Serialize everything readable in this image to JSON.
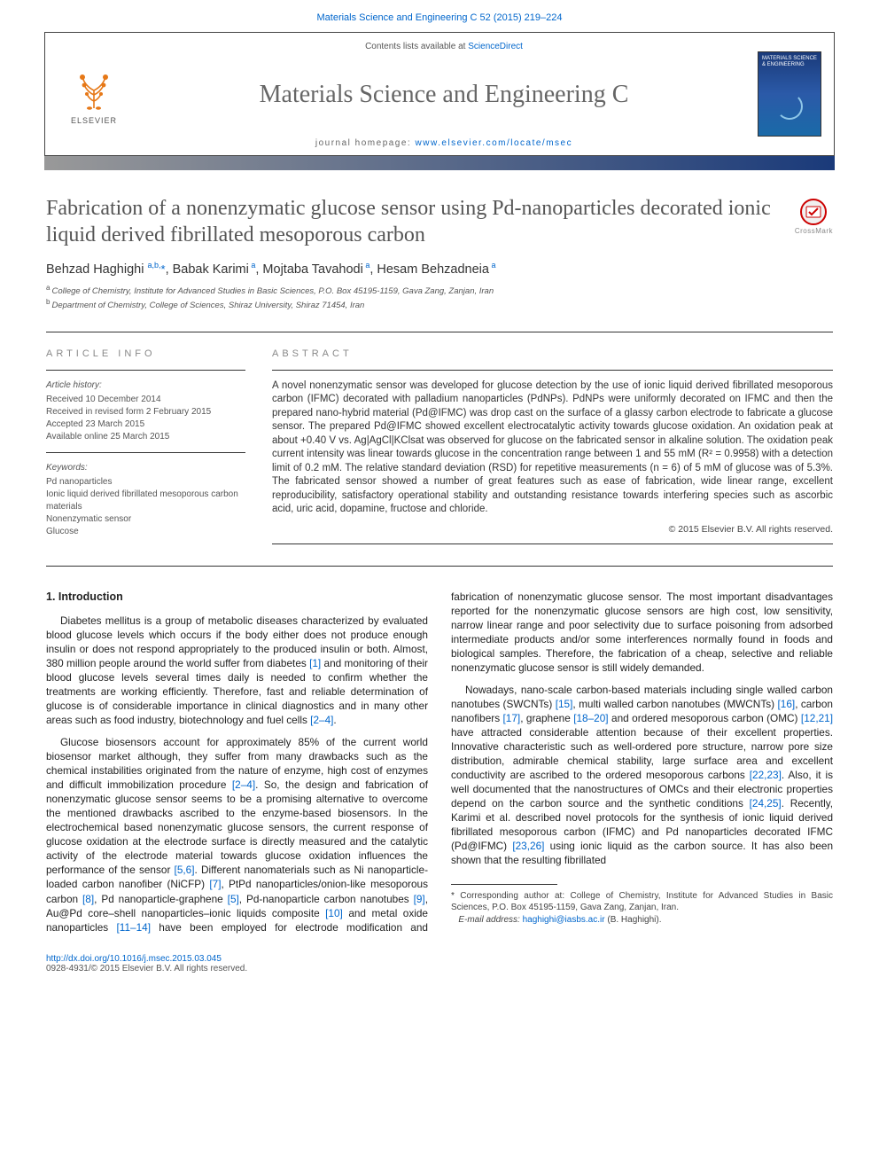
{
  "top_link": {
    "journal_ref": "Materials Science and Engineering C 52 (2015) 219–224"
  },
  "header": {
    "elsevier_label": "ELSEVIER",
    "contents_prefix": "Contents lists available at ",
    "contents_link": "ScienceDirect",
    "journal_name": "Materials Science and Engineering C",
    "homepage_prefix": "journal homepage: ",
    "homepage_url": "www.elsevier.com/locate/msec",
    "cover_text": "MATERIALS SCIENCE & ENGINEERING"
  },
  "article": {
    "title": "Fabrication of a nonenzymatic glucose sensor using Pd-nanoparticles decorated ionic liquid derived fibrillated mesoporous carbon",
    "crossmark_label": "CrossMark",
    "authors_html": "Behzad Haghighi <sup>a,b,</sup><span class='star'>*</span>, Babak Karimi<sup> a</sup>, Mojtaba Tavahodi<sup> a</sup>, Hesam Behzadneia<sup> a</sup>",
    "affiliations": {
      "a": "College of Chemistry, Institute for Advanced Studies in Basic Sciences, P.O. Box 45195-1159, Gava Zang, Zanjan, Iran",
      "b": "Department of Chemistry, College of Sciences, Shiraz University, Shiraz 71454, Iran"
    }
  },
  "info": {
    "heading": "article info",
    "history_label": "Article history:",
    "received": "Received 10 December 2014",
    "revised": "Received in revised form 2 February 2015",
    "accepted": "Accepted 23 March 2015",
    "online": "Available online 25 March 2015",
    "keywords_label": "Keywords:",
    "keywords": [
      "Pd nanoparticles",
      "Ionic liquid derived fibrillated mesoporous carbon materials",
      "Nonenzymatic sensor",
      "Glucose"
    ]
  },
  "abstract": {
    "heading": "abstract",
    "text": "A novel nonenzymatic sensor was developed for glucose detection by the use of ionic liquid derived fibrillated mesoporous carbon (IFMC) decorated with palladium nanoparticles (PdNPs). PdNPs were uniformly decorated on IFMC and then the prepared nano-hybrid material (Pd@IFMC) was drop cast on the surface of a glassy carbon electrode to fabricate a glucose sensor. The prepared Pd@IFMC showed excellent electrocatalytic activity towards glucose oxidation. An oxidation peak at about +0.40 V vs. Ag|AgCl|KClsat was observed for glucose on the fabricated sensor in alkaline solution. The oxidation peak current intensity was linear towards glucose in the concentration range between 1 and 55 mM (R² = 0.9958) with a detection limit of 0.2 mM. The relative standard deviation (RSD) for repetitive measurements (n = 6) of 5 mM of glucose was of 5.3%. The fabricated sensor showed a number of great features such as ease of fabrication, wide linear range, excellent reproducibility, satisfactory operational stability and outstanding resistance towards interfering species such as ascorbic acid, uric acid, dopamine, fructose and chloride.",
    "copyright": "© 2015 Elsevier B.V. All rights reserved."
  },
  "body": {
    "section_title": "1. Introduction",
    "p1": "Diabetes mellitus is a group of metabolic diseases characterized by evaluated blood glucose levels which occurs if the body either does not produce enough insulin or does not respond appropriately to the produced insulin or both. Almost, 380 million people around the world suffer from diabetes [1] and monitoring of their blood glucose levels several times daily is needed to confirm whether the treatments are working efficiently. Therefore, fast and reliable determination of glucose is of considerable importance in clinical diagnostics and in many other areas such as food industry, biotechnology and fuel cells [2–4].",
    "p2": "Glucose biosensors account for approximately 85% of the current world biosensor market although, they suffer from many drawbacks such as the chemical instabilities originated from the nature of enzyme, high cost of enzymes and difficult immobilization procedure [2–4]. So, the design and fabrication of nonenzymatic glucose sensor seems to be a promising alternative to overcome the mentioned drawbacks ascribed to the enzyme-based biosensors. In the electrochemical based nonenzymatic glucose sensors, the current response of glucose oxidation at the electrode surface is directly measured and the catalytic activity of the electrode material towards glucose oxidation influences the performance of the sensor [5,6]. Different nanomaterials such as Ni nanoparticle-loaded carbon nanofiber (NiCFP) [7], PtPd nanoparticles/onion-like mesoporous carbon [8], Pd nanoparticle-graphene [5], Pd-nanoparticle carbon nanotubes [9], Au@Pd core–shell nanoparticles–ionic liquids composite [10] and metal oxide nanoparticles [11–14] have been employed for electrode modification and fabrication of nonenzymatic glucose sensor. The most important disadvantages reported for the nonenzymatic glucose sensors are high cost, low sensitivity, narrow linear range and poor selectivity due to surface poisoning from adsorbed intermediate products and/or some interferences normally found in foods and biological samples. Therefore, the fabrication of a cheap, selective and reliable nonenzymatic glucose sensor is still widely demanded.",
    "p3": "Nowadays, nano-scale carbon-based materials including single walled carbon nanotubes (SWCNTs) [15], multi walled carbon nanotubes (MWCNTs) [16], carbon nanofibers [17], graphene [18–20] and ordered mesoporous carbon (OMC) [12,21] have attracted considerable attention because of their excellent properties. Innovative characteristic such as well-ordered pore structure, narrow pore size distribution, admirable chemical stability, large surface area and excellent conductivity are ascribed to the ordered mesoporous carbons [22,23]. Also, it is well documented that the nanostructures of OMCs and their electronic properties depend on the carbon source and the synthetic conditions [24,25]. Recently, Karimi et al. described novel protocols for the synthesis of ionic liquid derived fibrillated mesoporous carbon (IFMC) and Pd nanoparticles decorated IFMC (Pd@IFMC) [23,26] using ionic liquid as the carbon source. It has also been shown that the resulting fibrillated"
  },
  "footnote": {
    "corr": "Corresponding author at: College of Chemistry, Institute for Advanced Studies in Basic Sciences, P.O. Box 45195-1159, Gava Zang, Zanjan, Iran.",
    "email_label": "E-mail address:",
    "email": "haghighi@iasbs.ac.ir",
    "email_suffix": "(B. Haghighi)."
  },
  "bottom": {
    "doi": "http://dx.doi.org/10.1016/j.msec.2015.03.045",
    "issn_line": "0928-4931/© 2015 Elsevier B.V. All rights reserved."
  },
  "colors": {
    "link": "#0066cc",
    "text": "#333333",
    "muted": "#666666",
    "rule": "#333333",
    "gradient_start": "#999999",
    "gradient_end": "#1a3a7a"
  }
}
